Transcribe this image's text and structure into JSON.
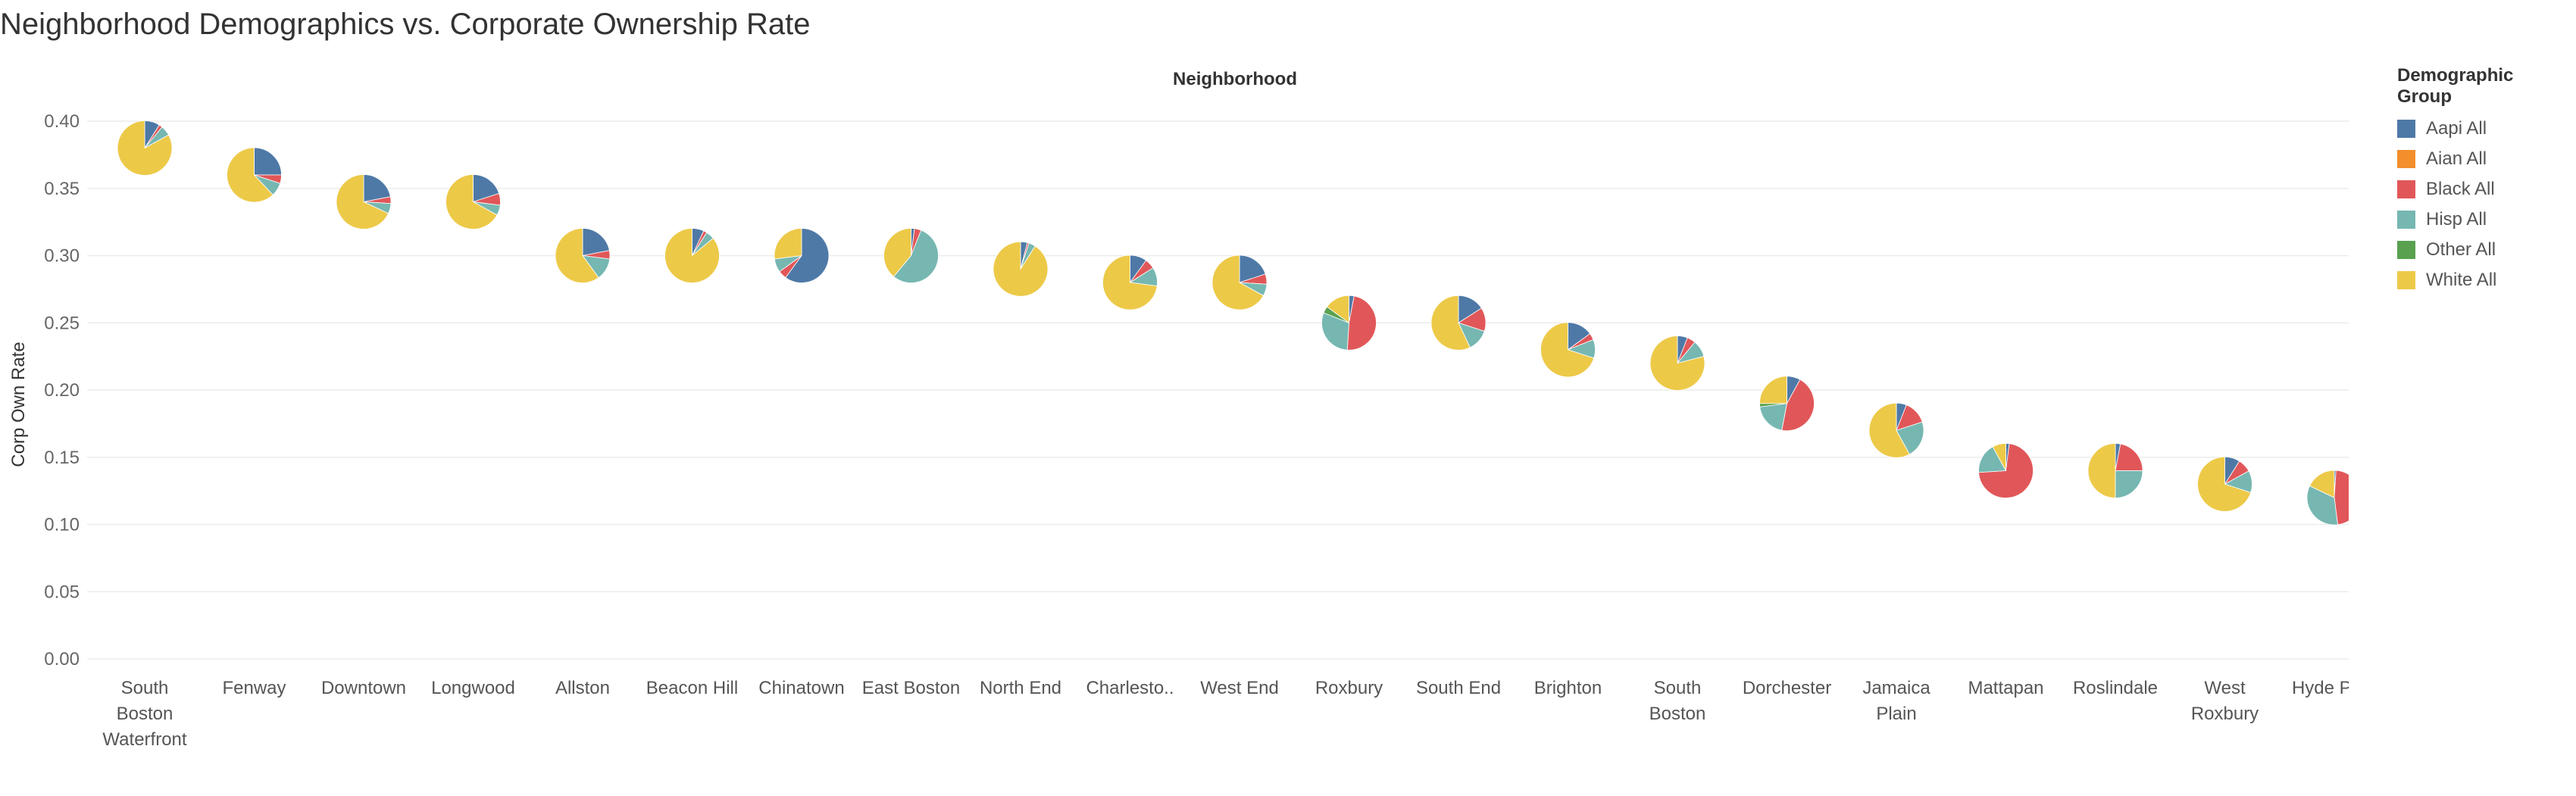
{
  "chart_data": {
    "type": "scatter-pie",
    "title": "Neighborhood Demographics vs. Corporate Ownership Rate",
    "column_header": "Neighborhood",
    "ylabel": "Corp Own Rate",
    "ylim": [
      0,
      0.4
    ],
    "y_ticks": [
      "0.00",
      "0.05",
      "0.10",
      "0.15",
      "0.20",
      "0.25",
      "0.30",
      "0.35",
      "0.40"
    ],
    "grid": true,
    "legend": {
      "title": "Demographic Group",
      "placement": "right",
      "items": [
        {
          "name": "Aapi All",
          "color": "#4e79a7"
        },
        {
          "name": "Aian All",
          "color": "#f28e2b"
        },
        {
          "name": "Black All",
          "color": "#e15759"
        },
        {
          "name": "Hisp All",
          "color": "#76b7b2"
        },
        {
          "name": "Other All",
          "color": "#59a14f"
        },
        {
          "name": "White All",
          "color": "#edc948"
        }
      ]
    },
    "neighborhoods": [
      {
        "label": [
          "South",
          "Boston",
          "Waterfront"
        ],
        "y": 0.38,
        "shares": [
          0.09,
          0.0,
          0.02,
          0.06,
          0.0,
          0.83
        ]
      },
      {
        "label": [
          "Fenway"
        ],
        "y": 0.36,
        "shares": [
          0.25,
          0.0,
          0.05,
          0.08,
          0.0,
          0.62
        ]
      },
      {
        "label": [
          "Downtown"
        ],
        "y": 0.34,
        "shares": [
          0.22,
          0.0,
          0.04,
          0.06,
          0.0,
          0.68
        ]
      },
      {
        "label": [
          "Longwood"
        ],
        "y": 0.34,
        "shares": [
          0.2,
          0.0,
          0.07,
          0.06,
          0.0,
          0.67
        ]
      },
      {
        "label": [
          "Allston"
        ],
        "y": 0.3,
        "shares": [
          0.22,
          0.0,
          0.05,
          0.13,
          0.0,
          0.6
        ]
      },
      {
        "label": [
          "Beacon Hill"
        ],
        "y": 0.3,
        "shares": [
          0.07,
          0.0,
          0.02,
          0.05,
          0.0,
          0.86
        ]
      },
      {
        "label": [
          "Chinatown"
        ],
        "y": 0.3,
        "shares": [
          0.6,
          0.0,
          0.05,
          0.08,
          0.0,
          0.27
        ]
      },
      {
        "label": [
          "East Boston"
        ],
        "y": 0.3,
        "shares": [
          0.02,
          0.0,
          0.04,
          0.55,
          0.0,
          0.39
        ]
      },
      {
        "label": [
          "North End"
        ],
        "y": 0.29,
        "shares": [
          0.04,
          0.0,
          0.01,
          0.04,
          0.0,
          0.91
        ]
      },
      {
        "label": [
          "Charlesto.."
        ],
        "y": 0.28,
        "shares": [
          0.1,
          0.0,
          0.06,
          0.11,
          0.0,
          0.73
        ]
      },
      {
        "label": [
          "West End"
        ],
        "y": 0.28,
        "shares": [
          0.2,
          0.0,
          0.06,
          0.07,
          0.0,
          0.67
        ]
      },
      {
        "label": [
          "Roxbury"
        ],
        "y": 0.25,
        "shares": [
          0.03,
          0.0,
          0.48,
          0.3,
          0.04,
          0.15
        ]
      },
      {
        "label": [
          "South End"
        ],
        "y": 0.25,
        "shares": [
          0.16,
          0.0,
          0.14,
          0.13,
          0.0,
          0.57
        ]
      },
      {
        "label": [
          "Brighton"
        ],
        "y": 0.23,
        "shares": [
          0.15,
          0.0,
          0.04,
          0.11,
          0.0,
          0.7
        ]
      },
      {
        "label": [
          "South",
          "Boston"
        ],
        "y": 0.22,
        "shares": [
          0.06,
          0.0,
          0.05,
          0.1,
          0.0,
          0.79
        ]
      },
      {
        "label": [
          "Dorchester"
        ],
        "y": 0.19,
        "shares": [
          0.08,
          0.0,
          0.45,
          0.2,
          0.02,
          0.25
        ]
      },
      {
        "label": [
          "Jamaica",
          "Plain"
        ],
        "y": 0.17,
        "shares": [
          0.06,
          0.0,
          0.14,
          0.22,
          0.0,
          0.58
        ]
      },
      {
        "label": [
          "Mattapan"
        ],
        "y": 0.14,
        "shares": [
          0.02,
          0.0,
          0.72,
          0.18,
          0.0,
          0.08
        ]
      },
      {
        "label": [
          "Roslindale"
        ],
        "y": 0.14,
        "shares": [
          0.03,
          0.0,
          0.22,
          0.25,
          0.0,
          0.5
        ]
      },
      {
        "label": [
          "West",
          "Roxbury"
        ],
        "y": 0.13,
        "shares": [
          0.09,
          0.0,
          0.08,
          0.13,
          0.0,
          0.7
        ]
      },
      {
        "label": [
          "Hyde Park"
        ],
        "y": 0.12,
        "shares": [
          0.01,
          0.0,
          0.47,
          0.34,
          0.0,
          0.18
        ]
      }
    ]
  }
}
